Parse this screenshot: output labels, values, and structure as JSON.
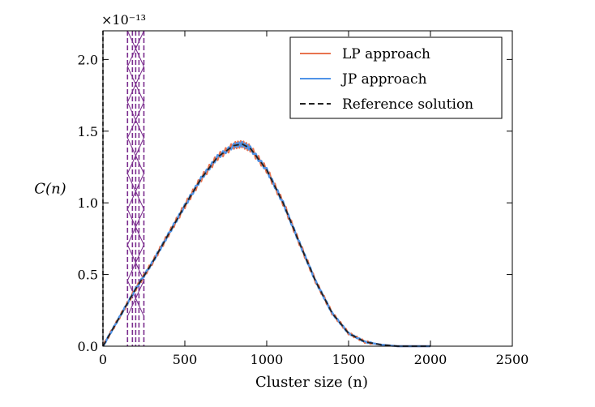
{
  "chart_data": {
    "type": "line",
    "xlabel": "Cluster size (n)",
    "ylabel": "C(n)",
    "y_scale_label": "×10⁻¹³",
    "xlim": [
      0,
      2500
    ],
    "ylim": [
      0,
      2.2
    ],
    "y_unit_multiplier": 1e-13,
    "x_ticks": [
      "0",
      "500",
      "1000",
      "1500",
      "2000",
      "2500"
    ],
    "y_ticks": [
      "0.0",
      "0.5",
      "1.0",
      "1.5",
      "2.0"
    ],
    "legend_position": "top-right",
    "series": [
      {
        "name": "LP approach",
        "color": "#e8734f",
        "style": "solid",
        "x": [
          0,
          100,
          200,
          300,
          400,
          500,
          600,
          700,
          800,
          850,
          900,
          1000,
          1100,
          1200,
          1300,
          1400,
          1500,
          1600,
          1700,
          1800,
          1900,
          2000
        ],
        "y": [
          0.0,
          0.2,
          0.4,
          0.58,
          0.78,
          0.98,
          1.17,
          1.32,
          1.4,
          1.41,
          1.38,
          1.23,
          1.0,
          0.72,
          0.45,
          0.23,
          0.09,
          0.03,
          0.01,
          0.0,
          0.0,
          0.0
        ]
      },
      {
        "name": "JP approach",
        "color": "#4f93e8",
        "style": "solid",
        "x": [
          0,
          100,
          200,
          300,
          400,
          500,
          600,
          700,
          800,
          850,
          900,
          1000,
          1100,
          1200,
          1300,
          1400,
          1500,
          1600,
          1700,
          1800,
          1900,
          2000
        ],
        "y": [
          0.0,
          0.2,
          0.4,
          0.58,
          0.78,
          0.98,
          1.17,
          1.32,
          1.4,
          1.41,
          1.38,
          1.23,
          1.0,
          0.72,
          0.45,
          0.23,
          0.09,
          0.03,
          0.01,
          0.0,
          0.0,
          0.0
        ]
      },
      {
        "name": "Reference solution",
        "color": "#222222",
        "style": "dashed",
        "x": [
          0,
          100,
          200,
          300,
          400,
          500,
          600,
          700,
          800,
          850,
          900,
          1000,
          1100,
          1200,
          1300,
          1400,
          1500,
          1600,
          1700,
          1800,
          1900,
          2000
        ],
        "y": [
          0.0,
          0.2,
          0.4,
          0.58,
          0.78,
          0.98,
          1.17,
          1.32,
          1.4,
          1.41,
          1.38,
          1.23,
          1.0,
          0.72,
          0.45,
          0.23,
          0.09,
          0.03,
          0.01,
          0.0,
          0.0,
          0.0
        ]
      }
    ],
    "annotations": [
      {
        "type": "vertical_band",
        "color": "#7b2d8e",
        "x_lines": [
          150,
          180,
          200,
          220,
          250
        ],
        "cross_hatch_x": [
          150,
          250
        ]
      },
      {
        "type": "vertical_dashed_line",
        "color": "#000000",
        "x": 0
      }
    ]
  }
}
